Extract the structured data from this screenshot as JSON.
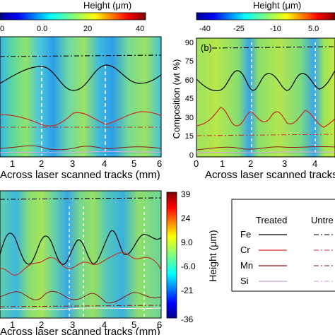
{
  "panel_a": {
    "colorbar_title": "Height (μm)",
    "colorbar_ticks": [
      "0",
      "0.0",
      "20",
      "40"
    ],
    "x_ticks": [
      "1",
      "2",
      "3",
      "4",
      "5",
      "6"
    ],
    "x_label": "Across laser scanned tracks (mm)"
  },
  "panel_b": {
    "panel_label": "(b)",
    "colorbar_title": "Height (μm)",
    "colorbar_ticks": [
      "-40",
      "-25",
      "-10",
      "5.0"
    ],
    "y_label": "Composition (wt %)",
    "y_ticks": [
      "0",
      "15",
      "30",
      "45",
      "60",
      "75",
      "90"
    ],
    "x_ticks": [
      "0",
      "1",
      "2",
      "3",
      "4"
    ],
    "x_label": "Across laser scanned tracks"
  },
  "panel_c": {
    "colorbar_title": "Height (μm)",
    "colorbar_ticks": [
      "39",
      "24",
      "9.0",
      "-6.0",
      "-21",
      "-36"
    ],
    "x_ticks": [
      "1",
      "2",
      "3",
      "4",
      "5",
      "6"
    ],
    "x_label": "Across laser scanned tracks (mm)"
  },
  "legend": {
    "treated_header": "Treated",
    "untreated_header": "Untre",
    "items": [
      {
        "label": "Fe",
        "color": "#000000"
      },
      {
        "label": "Cr",
        "color": "#d62728"
      },
      {
        "label": "Mn",
        "color": "#8b1a1a"
      },
      {
        "label": "Si",
        "color": "#c9a0dc"
      }
    ]
  }
}
